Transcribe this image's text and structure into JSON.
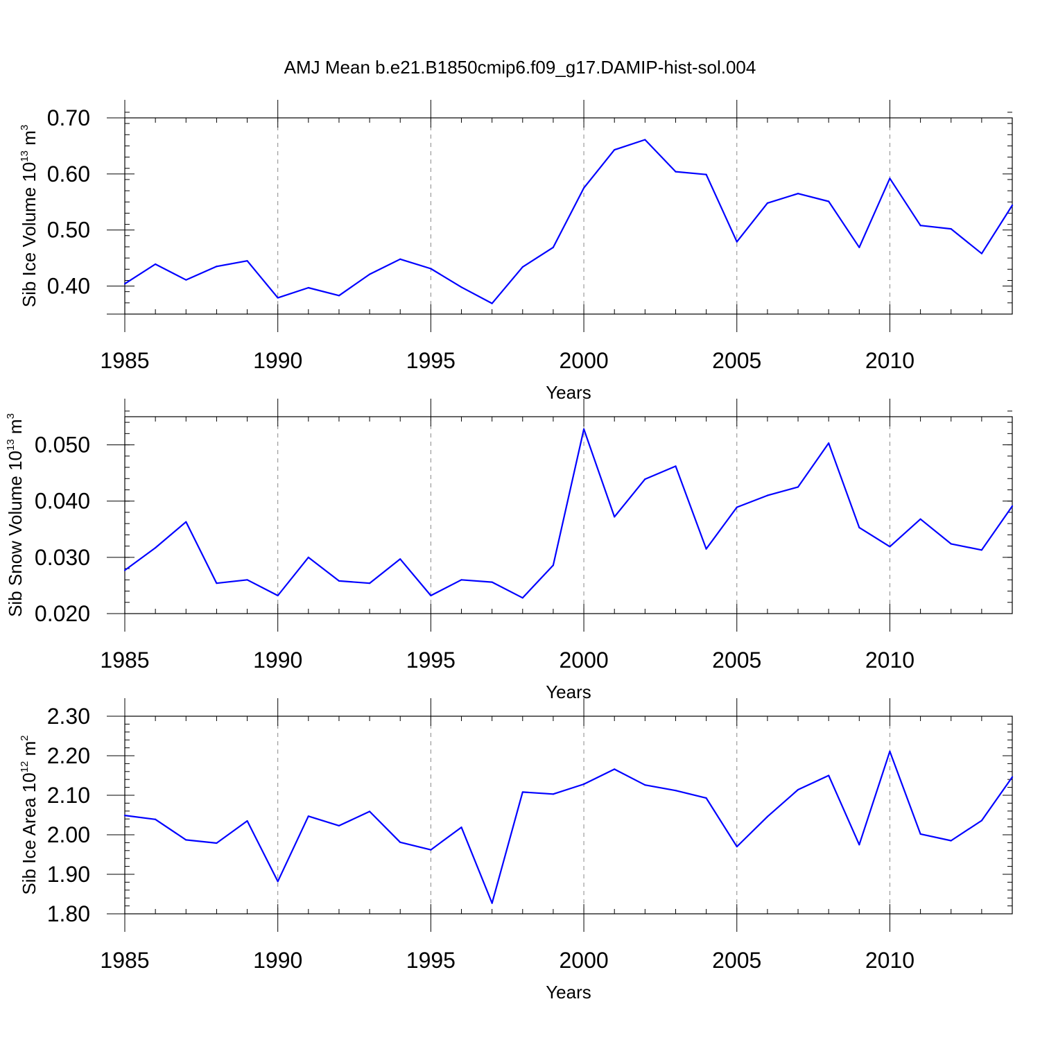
{
  "title": "AMJ Mean b.e21.B1850cmip6.f09_g17.DAMIP-hist-sol.004",
  "colors": {
    "line": "#0000ff",
    "grid": "#888888",
    "axis": "#000000"
  },
  "chart_data": [
    {
      "type": "line",
      "name": "sib-ice-volume",
      "ylabel_main": "Sib Ice Volume 10",
      "ylabel_exp": "13",
      "ylabel_unit": " m",
      "ylabel_unit_exp": "3",
      "xlabel": "Years",
      "xlim": [
        1985,
        2014
      ],
      "ylim": [
        0.35,
        0.7
      ],
      "yticks": [
        0.4,
        0.5,
        0.6,
        0.7
      ],
      "ytick_labels": [
        "0.40",
        "0.50",
        "0.60",
        "0.70"
      ],
      "ytick_minor_step": 0.02,
      "xticks": [
        1985,
        1990,
        1995,
        2000,
        2005,
        2010
      ],
      "xtick_labels": [
        "1985",
        "1990",
        "1995",
        "2000",
        "2005",
        "2010"
      ],
      "grid": "vertical-dashed",
      "x": [
        1985,
        1986,
        1987,
        1988,
        1989,
        1990,
        1991,
        1992,
        1993,
        1994,
        1995,
        1996,
        1997,
        1998,
        1999,
        2000,
        2001,
        2002,
        2003,
        2004,
        2005,
        2006,
        2007,
        2008,
        2009,
        2010,
        2011,
        2012,
        2013,
        2014
      ],
      "values": [
        0.404,
        0.439,
        0.411,
        0.435,
        0.445,
        0.379,
        0.397,
        0.383,
        0.421,
        0.448,
        0.431,
        0.398,
        0.369,
        0.434,
        0.469,
        0.575,
        0.643,
        0.661,
        0.604,
        0.599,
        0.479,
        0.548,
        0.565,
        0.551,
        0.469,
        0.592,
        0.508,
        0.502,
        0.458,
        0.544
      ]
    },
    {
      "type": "line",
      "name": "sib-snow-volume",
      "ylabel_main": "Sib Snow Volume 10",
      "ylabel_exp": "13",
      "ylabel_unit": " m",
      "ylabel_unit_exp": "3",
      "xlabel": "Years",
      "xlim": [
        1985,
        2014
      ],
      "ylim": [
        0.02,
        0.055
      ],
      "yticks": [
        0.02,
        0.03,
        0.04,
        0.05
      ],
      "ytick_labels": [
        "0.020",
        "0.030",
        "0.040",
        "0.050"
      ],
      "ytick_minor_step": 0.002,
      "xticks": [
        1985,
        1990,
        1995,
        2000,
        2005,
        2010
      ],
      "xtick_labels": [
        "1985",
        "1990",
        "1995",
        "2000",
        "2005",
        "2010"
      ],
      "grid": "vertical-dashed",
      "x": [
        1985,
        1986,
        1987,
        1988,
        1989,
        1990,
        1991,
        1992,
        1993,
        1994,
        1995,
        1996,
        1997,
        1998,
        1999,
        2000,
        2001,
        2002,
        2003,
        2004,
        2005,
        2006,
        2007,
        2008,
        2009,
        2010,
        2011,
        2012,
        2013,
        2014
      ],
      "values": [
        0.0277,
        0.0317,
        0.0363,
        0.0254,
        0.026,
        0.0232,
        0.03,
        0.0258,
        0.0254,
        0.0297,
        0.0232,
        0.026,
        0.0256,
        0.0228,
        0.0286,
        0.0528,
        0.0372,
        0.0439,
        0.0462,
        0.0315,
        0.0389,
        0.041,
        0.0425,
        0.0503,
        0.0353,
        0.0319,
        0.0368,
        0.0324,
        0.0313,
        0.0391
      ]
    },
    {
      "type": "line",
      "name": "sib-ice-area",
      "ylabel_main": "Sib Ice Area 10",
      "ylabel_exp": "12",
      "ylabel_unit": " m",
      "ylabel_unit_exp": "2",
      "xlabel": "Years",
      "xlim": [
        1985,
        2014
      ],
      "ylim": [
        1.8,
        2.3
      ],
      "yticks": [
        1.8,
        1.9,
        2.0,
        2.1,
        2.2,
        2.3
      ],
      "ytick_labels": [
        "1.80",
        "1.90",
        "2.00",
        "2.10",
        "2.20",
        "2.30"
      ],
      "ytick_minor_step": 0.02,
      "xticks": [
        1985,
        1990,
        1995,
        2000,
        2005,
        2010
      ],
      "xtick_labels": [
        "1985",
        "1990",
        "1995",
        "2000",
        "2005",
        "2010"
      ],
      "grid": "vertical-dashed",
      "x": [
        1985,
        1986,
        1987,
        1988,
        1989,
        1990,
        1991,
        1992,
        1993,
        1994,
        1995,
        1996,
        1997,
        1998,
        1999,
        2000,
        2001,
        2002,
        2003,
        2004,
        2005,
        2006,
        2007,
        2008,
        2009,
        2010,
        2011,
        2012,
        2013,
        2014
      ],
      "values": [
        2.049,
        2.039,
        1.987,
        1.979,
        2.035,
        1.882,
        2.047,
        2.023,
        2.059,
        1.981,
        1.962,
        2.019,
        1.827,
        2.108,
        2.103,
        2.128,
        2.166,
        2.126,
        2.112,
        2.093,
        1.97,
        2.046,
        2.114,
        2.15,
        1.975,
        2.211,
        2.002,
        1.985,
        2.036,
        2.146
      ]
    }
  ]
}
